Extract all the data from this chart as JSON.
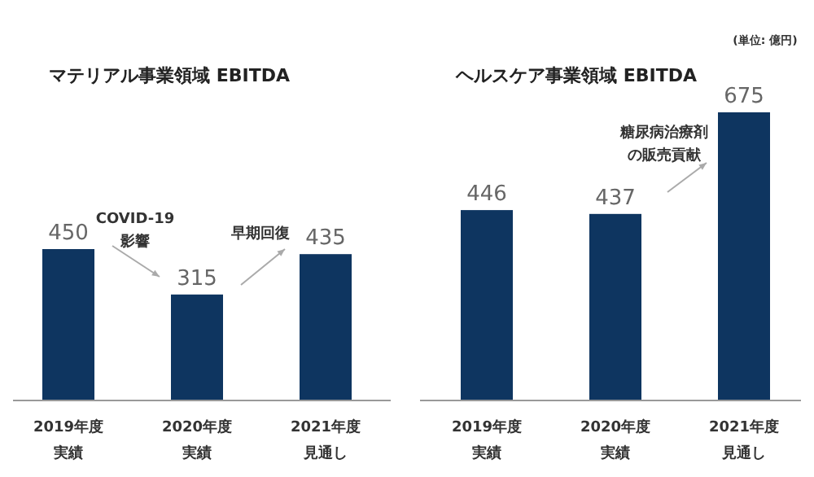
{
  "chart_data": [
    {
      "type": "bar",
      "title": "マテリアル事業領域 EBITDA",
      "categories": [
        "2019年度実績",
        "2020年度実績",
        "2021年度見通し"
      ],
      "values": [
        450,
        315,
        435
      ],
      "color": "#0e3560",
      "data_labels": true,
      "annotations": [
        "COVID-19\n影響",
        "早期回復"
      ]
    },
    {
      "type": "bar",
      "title": "ヘルスケア事業領域 EBITDA",
      "categories": [
        "2019年度実績",
        "2020年度実績",
        "2021年度見通し"
      ],
      "values": [
        446,
        437,
        675
      ],
      "color": "#0e3560",
      "data_labels": true,
      "annotations": [
        "(単位: 億円)",
        "糖尿病治療剤の販売貢献"
      ]
    }
  ]
}
